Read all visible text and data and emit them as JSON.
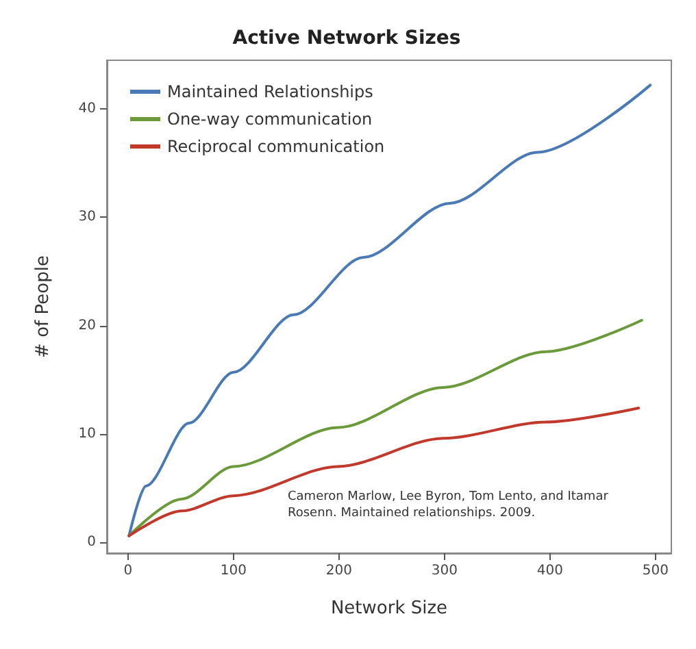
{
  "chart_data": {
    "type": "line",
    "title": "Active Network Sizes",
    "xlabel": "Network Size",
    "ylabel": "# of People",
    "xlim": [
      -20,
      515
    ],
    "xticks": [
      0,
      100,
      200,
      300,
      400,
      500
    ],
    "ylim": [
      -1,
      44.5
    ],
    "yticks": [
      0,
      10,
      20,
      30,
      40
    ],
    "grid": false,
    "legend": "top left",
    "marker": "none",
    "line_style": "solid",
    "annotations": [
      "Cameron Marlow, Lee Byron, Tom Lento, and Itamar Rosenn. Maintained relationships. 2009."
    ],
    "series": [
      {
        "name": "Maintained Relationships",
        "color": "#4a7ab5",
        "x": [
          1,
          17,
          58,
          100,
          157,
          223,
          305,
          388,
          495
        ],
        "values": [
          0.6,
          5.2,
          11,
          15.7,
          21,
          26.3,
          31.3,
          36,
          42.2
        ]
      },
      {
        "name": "One-way communication",
        "color": "#6a9a3a",
        "x": [
          1,
          51,
          100,
          199,
          299,
          396,
          487
        ],
        "values": [
          0.6,
          4.0,
          7.0,
          10.6,
          14.3,
          17.6,
          20.5
        ]
      },
      {
        "name": "Reciprocal communication",
        "color": "#c0392b",
        "x": [
          1,
          51,
          100,
          199,
          299,
          396,
          484
        ],
        "values": [
          0.6,
          2.9,
          4.3,
          7.0,
          9.6,
          11.1,
          12.4
        ]
      }
    ]
  }
}
